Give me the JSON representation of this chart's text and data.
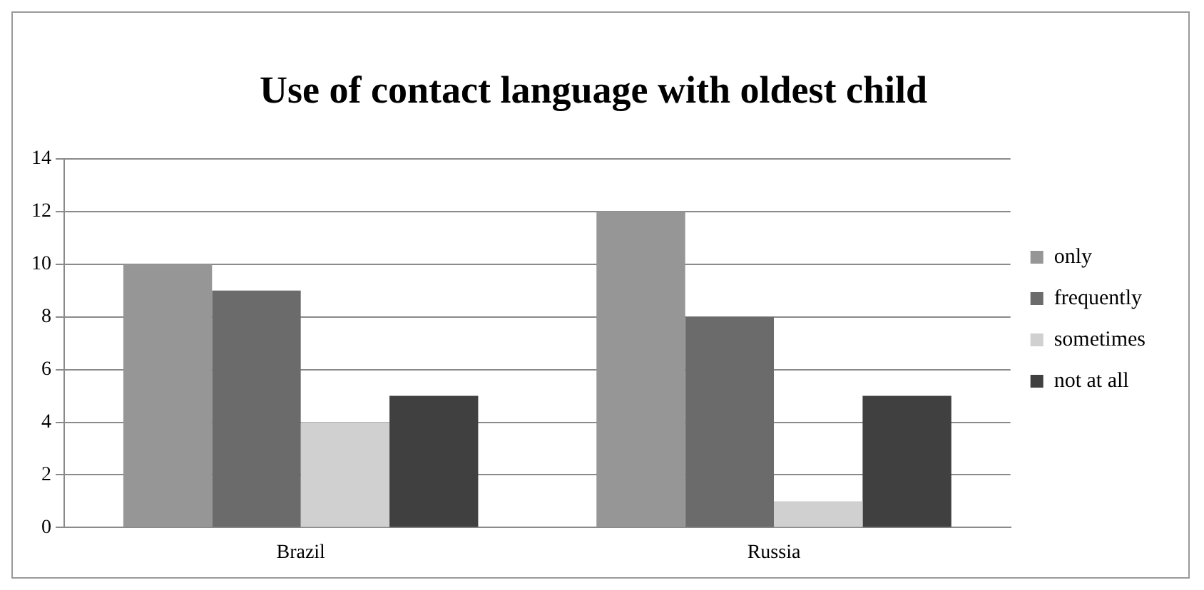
{
  "chart_data": {
    "type": "bar",
    "title": "Use of contact language with oldest child",
    "categories": [
      "Brazil",
      "Russia"
    ],
    "series": [
      {
        "name": "only",
        "color": "#969696",
        "values": [
          10,
          12
        ]
      },
      {
        "name": "frequently",
        "color": "#6b6b6b",
        "values": [
          9,
          8
        ]
      },
      {
        "name": "sometimes",
        "color": "#d0d0d0",
        "values": [
          4,
          1
        ]
      },
      {
        "name": "not at all",
        "color": "#404040",
        "values": [
          5,
          5
        ]
      }
    ],
    "ylim": [
      0,
      14
    ],
    "yticks": [
      0,
      2,
      4,
      6,
      8,
      10,
      12,
      14
    ],
    "grid": "y",
    "legend": "right"
  }
}
